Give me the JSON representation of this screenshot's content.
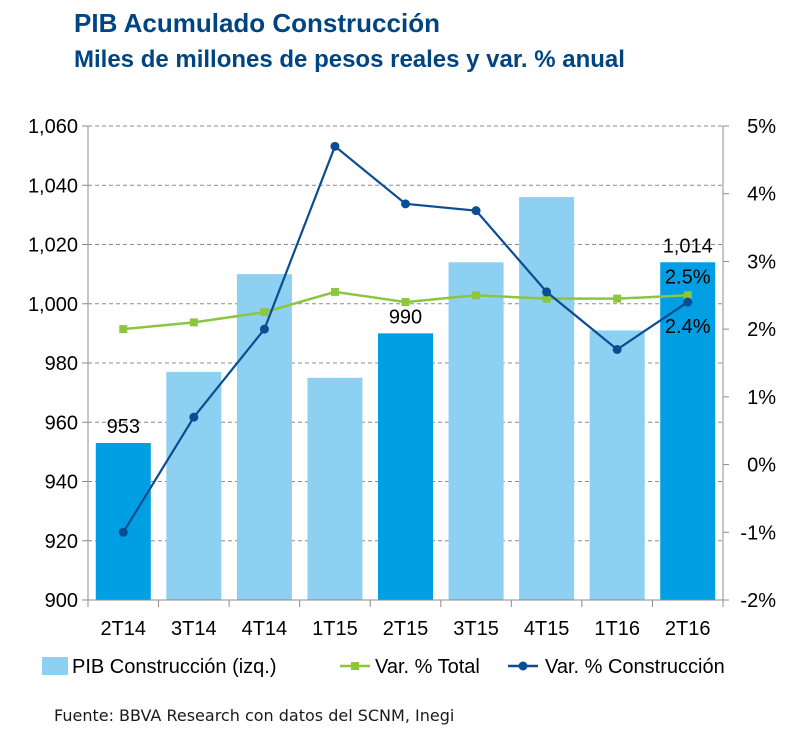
{
  "chart_data": {
    "type": "bar",
    "title": "PIB Acumulado Construcción",
    "subtitle": "Miles de millones de pesos reales y var. % anual",
    "categories": [
      "2T14",
      "3T14",
      "4T14",
      "1T15",
      "2T15",
      "3T15",
      "4T15",
      "1T16",
      "2T16"
    ],
    "series": [
      {
        "name": "PIB Construcción (izq.)",
        "kind": "bar",
        "axis": "left",
        "values": [
          953,
          977,
          1010,
          975,
          990,
          1014,
          1036,
          991,
          1014
        ],
        "highlight": [
          true,
          false,
          false,
          false,
          true,
          false,
          false,
          false,
          true
        ],
        "color": "#8ed0f2",
        "highlight_color": "#009fe3"
      },
      {
        "name": "Var. % Total",
        "kind": "line",
        "axis": "right",
        "marker": "square",
        "values": [
          2.0,
          2.1,
          2.25,
          2.55,
          2.4,
          2.5,
          2.45,
          2.45,
          2.5
        ],
        "color": "#8cc63f"
      },
      {
        "name": "Var. % Construcción",
        "kind": "line",
        "axis": "right",
        "marker": "circle",
        "values": [
          -1.0,
          0.7,
          2.0,
          4.7,
          3.85,
          3.75,
          2.55,
          1.7,
          2.4
        ],
        "color": "#0b4d92"
      }
    ],
    "y_left": {
      "min": 900,
      "max": 1060,
      "step": 20,
      "ticks": [
        "900",
        "920",
        "940",
        "960",
        "980",
        "1,000",
        "1,020",
        "1,040",
        "1,060"
      ]
    },
    "y_right": {
      "min": -2,
      "max": 5,
      "step": 1,
      "ticks": [
        "-2%",
        "-1%",
        "0%",
        "1%",
        "2%",
        "3%",
        "4%",
        "5%"
      ]
    },
    "grid": true,
    "legend_position": "bottom",
    "annotations": [
      {
        "category": "2T14",
        "series": "PIB Construcción (izq.)",
        "text": "953"
      },
      {
        "category": "2T15",
        "series": "PIB Construcción (izq.)",
        "text": "990"
      },
      {
        "category": "2T16",
        "series": "PIB Construcción (izq.)",
        "text": "1,014"
      },
      {
        "category": "2T16",
        "series": "Var. % Total",
        "text": "2.5%"
      },
      {
        "category": "2T16",
        "series": "Var. % Construcción",
        "text": "2.4%"
      }
    ],
    "source": "Fuente: BBVA Research con datos del SCNM, Inegi"
  }
}
